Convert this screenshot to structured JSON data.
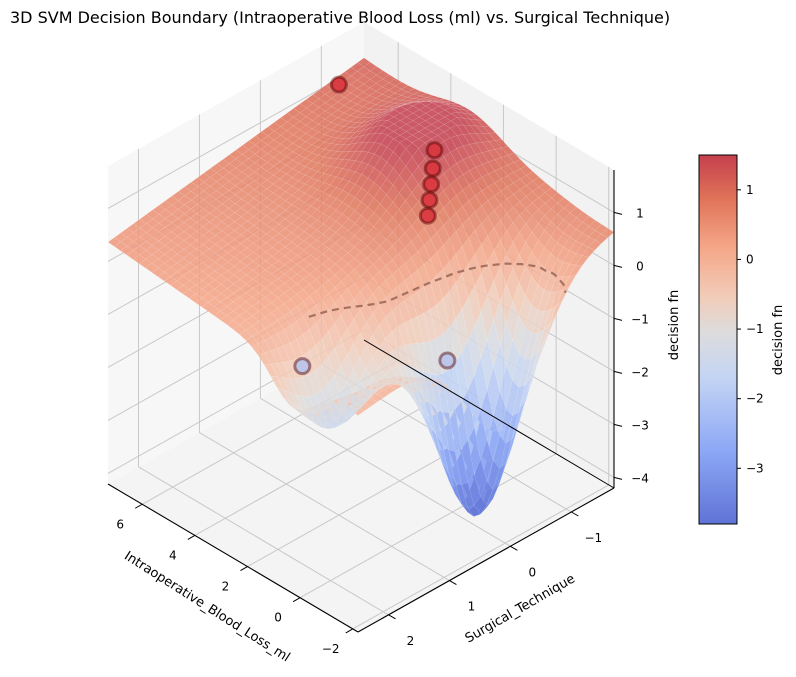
{
  "chart_data": {
    "type": "surface3d",
    "title": "3D SVM Decision Boundary (Intraoperative Blood Loss (ml) vs. Surgical Technique)",
    "xlabel": "Intraoperative_Blood_Loss_ml",
    "ylabel": "Surgical_Technique",
    "zlabel": "decision fn",
    "x_ticks": [
      "6",
      "4",
      "2",
      "0",
      "−2"
    ],
    "x_tick_values": [
      6,
      4,
      2,
      0,
      -2
    ],
    "y_ticks": [
      "−1",
      "0",
      "1",
      "2"
    ],
    "y_tick_values": [
      -1,
      0,
      1,
      2
    ],
    "z_ticks": [
      "1",
      "0",
      "−1",
      "−2",
      "−3",
      "−4"
    ],
    "z_tick_values": [
      1,
      0,
      -1,
      -2,
      -3,
      -4
    ],
    "xlim": [
      -2.2,
      7.3
    ],
    "ylim": [
      -1.7,
      2.5
    ],
    "zlim": [
      -4.2,
      1.8
    ],
    "colormap": "coolwarm",
    "grid": true,
    "decision_boundary": {
      "level": 0,
      "style": "dashed"
    },
    "points": [
      {
        "x": 6.4,
        "y": -0.9,
        "z": 1.4,
        "class": "positive"
      },
      {
        "x": 3.0,
        "y": -1.0,
        "z": 1.1,
        "class": "positive"
      },
      {
        "x": 2.6,
        "y": -0.8,
        "z": 1.0,
        "class": "positive"
      },
      {
        "x": 2.2,
        "y": -0.6,
        "z": 0.95,
        "class": "positive"
      },
      {
        "x": 1.8,
        "y": -0.4,
        "z": 0.9,
        "class": "positive"
      },
      {
        "x": 1.4,
        "y": -0.2,
        "z": 0.85,
        "class": "positive"
      },
      {
        "x": 2.0,
        "y": 1.6,
        "z": -1.0,
        "class": "negative"
      },
      {
        "x": -0.5,
        "y": 0.3,
        "z": -1.0,
        "class": "negative"
      }
    ],
    "colorbar": {
      "label": "decision fn",
      "ticks": [
        "1",
        "0",
        "−1",
        "−2",
        "−3"
      ],
      "tick_values": [
        1,
        0,
        -1,
        -2,
        -3
      ],
      "range": [
        -3.8,
        1.5
      ]
    }
  }
}
